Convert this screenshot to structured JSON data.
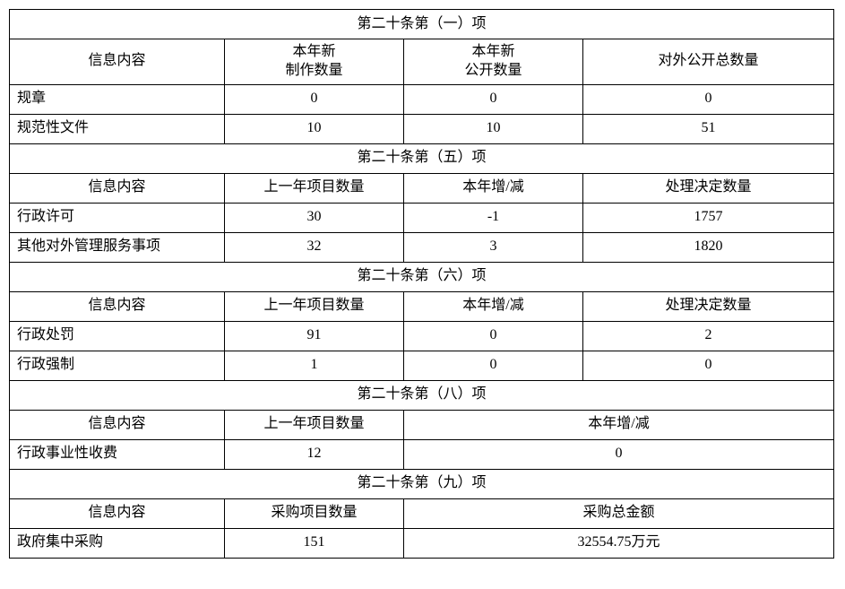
{
  "section1": {
    "title": "第二十条第（一）项",
    "headers": [
      "信息内容",
      "本年新\n制作数量",
      "本年新\n公开数量",
      "对外公开总数量"
    ],
    "rows": [
      [
        "规章",
        "0",
        "0",
        "0"
      ],
      [
        "规范性文件",
        "10",
        "10",
        "51"
      ]
    ]
  },
  "section2": {
    "title": "第二十条第（五）项",
    "headers": [
      "信息内容",
      "上一年项目数量",
      "本年增/减",
      "处理决定数量"
    ],
    "rows": [
      [
        "行政许可",
        "30",
        "-1",
        "1757"
      ],
      [
        "其他对外管理服务事项",
        "32",
        "3",
        "1820"
      ]
    ]
  },
  "section3": {
    "title": "第二十条第（六）项",
    "headers": [
      "信息内容",
      "上一年项目数量",
      "本年增/减",
      "处理决定数量"
    ],
    "rows": [
      [
        "行政处罚",
        "91",
        "0",
        "2"
      ],
      [
        "行政强制",
        "1",
        "0",
        "0"
      ]
    ]
  },
  "section4": {
    "title": "第二十条第（八）项",
    "headers": [
      "信息内容",
      "上一年项目数量",
      "本年增/减"
    ],
    "rows": [
      [
        "行政事业性收费",
        "12",
        "0"
      ]
    ]
  },
  "section5": {
    "title": "第二十条第（九）项",
    "headers": [
      "信息内容",
      "采购项目数量",
      "采购总金额"
    ],
    "rows": [
      [
        "政府集中采购",
        "151",
        "32554.75万元"
      ]
    ]
  },
  "colwidths": {
    "c1": "240",
    "c2": "200",
    "c3": "200",
    "c4": "280"
  }
}
